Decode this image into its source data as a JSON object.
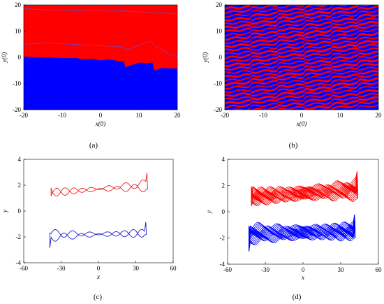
{
  "panels": [
    {
      "id": "a",
      "label": "(a)",
      "type": "heatmap",
      "xlabel": "x(0)",
      "ylabel": "y(0)",
      "xlim": [
        -20,
        20
      ],
      "ylim": [
        -20,
        20
      ],
      "xticks": [
        -20,
        -10,
        0,
        10,
        20
      ],
      "yticks": [
        -20,
        -10,
        0,
        10,
        20
      ],
      "colors": {
        "upper": "#ff0000",
        "lower": "#0000ff"
      },
      "boundary": {
        "x": [
          -20,
          -15,
          -10,
          -6,
          -5,
          -2,
          0,
          2,
          5,
          6,
          6.5,
          8,
          10,
          12,
          13.5,
          14,
          16,
          18,
          20
        ],
        "y": [
          0.2,
          0,
          -0.3,
          -0.3,
          -0.8,
          -0.6,
          -1.2,
          -0.8,
          -1.5,
          -1.5,
          -3.8,
          -3.0,
          -2.0,
          -2.2,
          -2.0,
          -5.0,
          -4.0,
          -4.2,
          -4.3
        ]
      },
      "dotted_curves": [
        {
          "x": [
            -20,
            -15,
            -10,
            -5,
            0,
            5,
            10,
            12,
            13,
            15,
            18,
            20
          ],
          "y": [
            18.5,
            18.2,
            18.0,
            17.8,
            17.7,
            17.7,
            17.4,
            17.2,
            17.1,
            17.0,
            16.8,
            16.7
          ]
        },
        {
          "x": [
            -20,
            -15,
            -10,
            -5,
            0,
            3,
            5,
            7,
            9,
            11,
            13,
            14,
            16,
            18,
            20
          ],
          "y": [
            5.0,
            5.5,
            5.2,
            4.7,
            4.5,
            4.0,
            4.1,
            3.0,
            4.0,
            5.2,
            6.2,
            4.5,
            3.0,
            1.0,
            0.3
          ]
        }
      ]
    },
    {
      "id": "b",
      "label": "(b)",
      "type": "heatmap",
      "xlabel": "x(0)",
      "ylabel": "y(0)",
      "xlim": [
        -20,
        20
      ],
      "ylim": [
        -20,
        20
      ],
      "xticks": [
        -20,
        -10,
        0,
        10,
        20
      ],
      "yticks": [
        -20,
        -10,
        0,
        10,
        20
      ],
      "colors": {
        "a": "#ff0000",
        "b": "#0000ff"
      },
      "band_count": 36,
      "band_slope": 0.3
    },
    {
      "id": "c",
      "label": "(c)",
      "type": "line",
      "xlabel": "x",
      "ylabel": "y",
      "xlim": [
        -60,
        60
      ],
      "ylim": [
        -4,
        4
      ],
      "xticks": [
        -60,
        -30,
        0,
        30,
        60
      ],
      "yticks": [
        -4,
        -2,
        0,
        2,
        4
      ],
      "series": [
        {
          "color": "#e8211f",
          "center_y": 1.75,
          "xrange": [
            -37,
            38
          ],
          "amplitude": 0.35,
          "cycles": 1
        },
        {
          "color": "#1d1dc8",
          "center_y": -1.75,
          "xrange": [
            -38,
            37
          ],
          "amplitude": 0.35,
          "cycles": 1
        }
      ]
    },
    {
      "id": "d",
      "label": "(d)",
      "type": "line",
      "xlabel": "x",
      "ylabel": "y",
      "xlim": [
        -60,
        60
      ],
      "ylim": [
        -4,
        4
      ],
      "xticks": [
        -60,
        -30,
        0,
        30,
        60
      ],
      "yticks": [
        -4,
        -2,
        0,
        2,
        4
      ],
      "series": [
        {
          "color": "#ff0000",
          "center_y": 1.5,
          "xrange": [
            -40,
            42
          ],
          "amplitude": 0.35,
          "cycles": 14
        },
        {
          "color": "#0000ff",
          "center_y": -1.5,
          "xrange": [
            -42,
            40
          ],
          "amplitude": 0.35,
          "cycles": 14
        }
      ]
    }
  ]
}
